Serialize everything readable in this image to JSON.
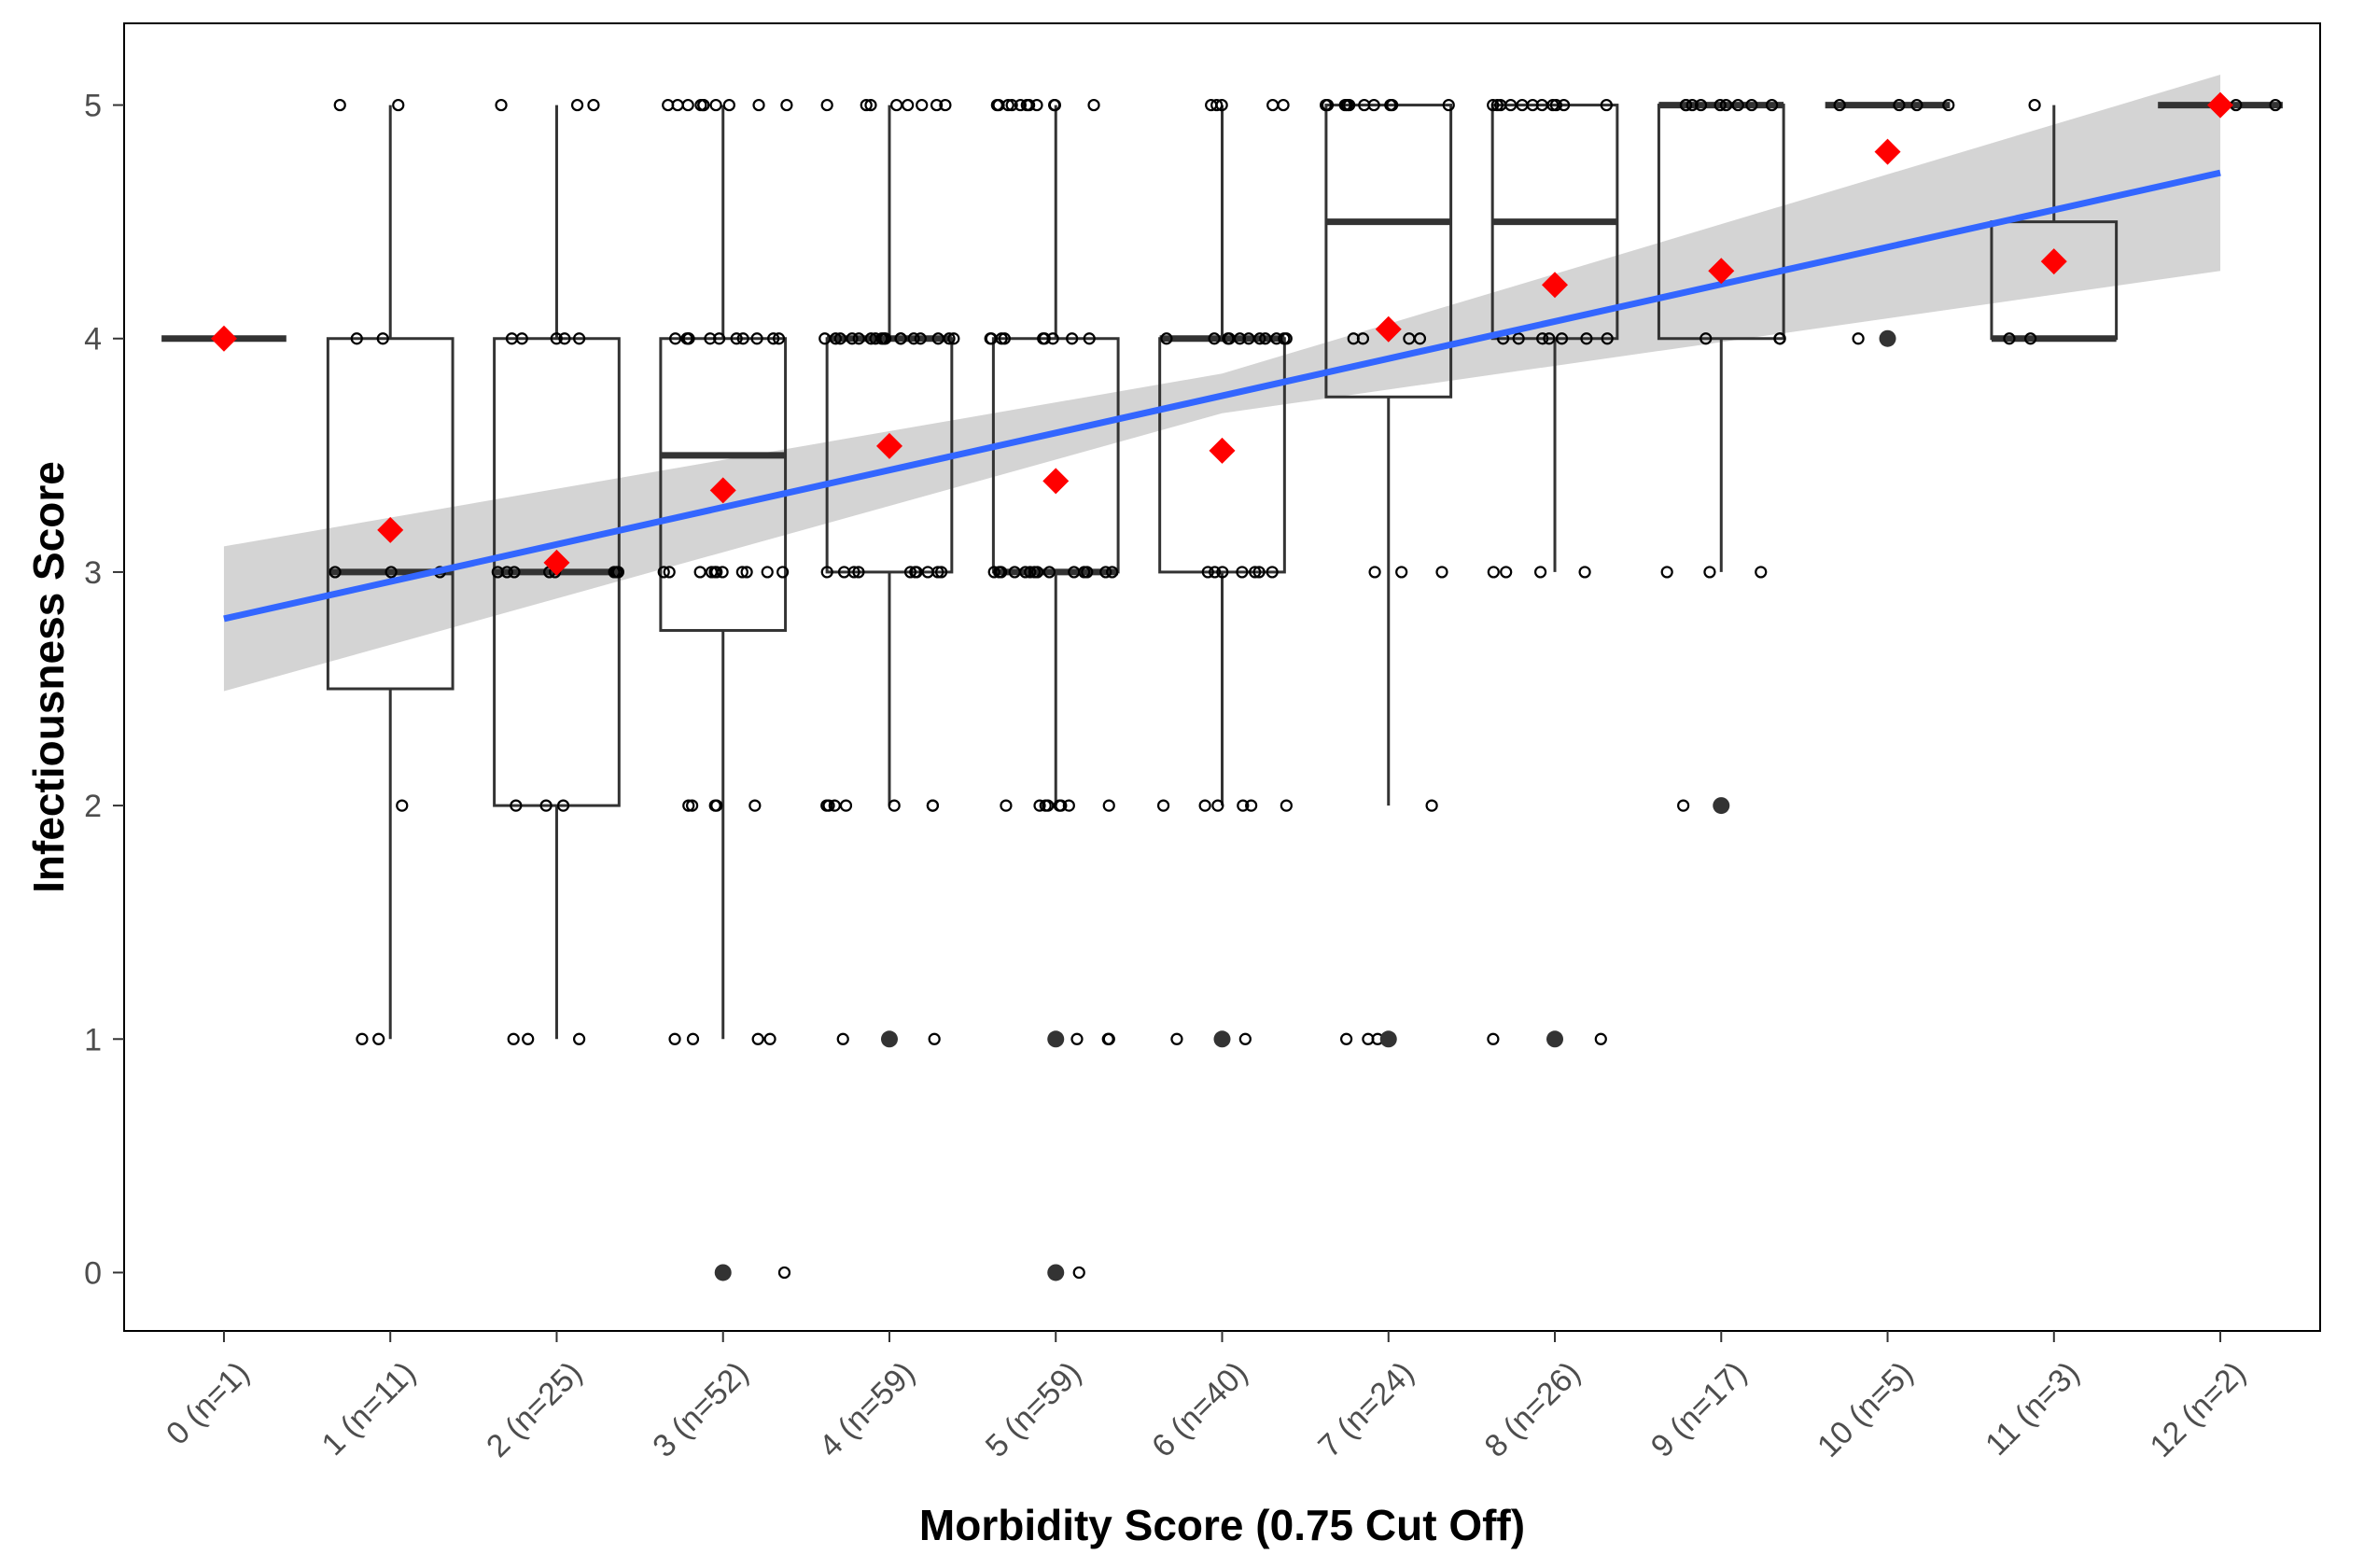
{
  "chart_data": {
    "type": "boxplot",
    "xlabel": "Morbidity Score (0.75 Cut Off)",
    "ylabel": "Infectiousness Score",
    "ylim": [
      -0.25,
      5.35
    ],
    "yticks": [
      0,
      1,
      2,
      3,
      4,
      5
    ],
    "grid": false,
    "legend": "none",
    "colors": {
      "mean": "#ff0000",
      "trend": "#3366ff",
      "ci_band": "#d4d4d4",
      "box_stroke": "#333333",
      "point": "#000000",
      "outlier": "#333333"
    },
    "categories": [
      "0 (n=1)",
      "1 (n=11)",
      "2 (n=25)",
      "3 (n=52)",
      "4 (n=59)",
      "5 (n=59)",
      "6 (n=40)",
      "7 (n=24)",
      "8 (n=26)",
      "9 (n=17)",
      "10 (n=5)",
      "11 (n=3)",
      "12 (n=2)"
    ],
    "boxes": [
      {
        "category": "0 (n=1)",
        "min": 4,
        "q1": 4,
        "median": 4,
        "q3": 4,
        "max": 4,
        "mean": 4.0,
        "outliers": []
      },
      {
        "category": "1 (n=11)",
        "min": 1,
        "q1": 2.5,
        "median": 3,
        "q3": 4,
        "max": 5,
        "mean": 3.18,
        "outliers": []
      },
      {
        "category": "2 (n=25)",
        "min": 1,
        "q1": 2,
        "median": 3,
        "q3": 4,
        "max": 5,
        "mean": 3.04,
        "outliers": []
      },
      {
        "category": "3 (n=52)",
        "min": 1,
        "q1": 2.75,
        "median": 3.5,
        "q3": 4,
        "max": 5,
        "mean": 3.35,
        "outliers": [
          0
        ]
      },
      {
        "category": "4 (n=59)",
        "min": 2,
        "q1": 3,
        "median": 4,
        "q3": 4,
        "max": 5,
        "mean": 3.54,
        "outliers": [
          1
        ]
      },
      {
        "category": "5 (n=59)",
        "min": 2,
        "q1": 3,
        "median": 3,
        "q3": 4,
        "max": 5,
        "mean": 3.39,
        "outliers": [
          1,
          0
        ]
      },
      {
        "category": "6 (n=40)",
        "min": 2,
        "q1": 3,
        "median": 4,
        "q3": 4,
        "max": 5,
        "mean": 3.52,
        "outliers": [
          1
        ]
      },
      {
        "category": "7 (n=24)",
        "min": 2,
        "q1": 3.75,
        "median": 4.5,
        "q3": 5,
        "max": 5,
        "mean": 4.04,
        "outliers": [
          1
        ]
      },
      {
        "category": "8 (n=26)",
        "min": 3,
        "q1": 4,
        "median": 4.5,
        "q3": 5,
        "max": 5,
        "mean": 4.23,
        "outliers": [
          1
        ]
      },
      {
        "category": "9 (n=17)",
        "min": 3,
        "q1": 4,
        "median": 5,
        "q3": 5,
        "max": 5,
        "mean": 4.29,
        "outliers": [
          2
        ]
      },
      {
        "category": "10 (n=5)",
        "min": 5,
        "q1": 5,
        "median": 5,
        "q3": 5,
        "max": 5,
        "mean": 4.8,
        "outliers": [
          4
        ]
      },
      {
        "category": "11 (n=3)",
        "min": 4,
        "q1": 4,
        "median": 4,
        "q3": 4.5,
        "max": 5,
        "mean": 4.33,
        "outliers": []
      },
      {
        "category": "12 (n=2)",
        "min": 5,
        "q1": 5,
        "median": 5,
        "q3": 5,
        "max": 5,
        "mean": 5.0,
        "outliers": []
      }
    ],
    "jitter_points": [
      {
        "category": "0 (n=1)",
        "values": [
          4
        ]
      },
      {
        "category": "1 (n=11)",
        "values": [
          5,
          5,
          4,
          4,
          3,
          3,
          3,
          2,
          1,
          1
        ]
      },
      {
        "category": "2 (n=25)",
        "values": [
          5,
          5,
          5,
          4,
          4,
          4,
          4,
          4,
          3,
          3,
          3,
          3,
          3,
          3,
          3,
          3,
          2,
          2,
          2,
          1,
          1,
          1
        ]
      },
      {
        "category": "3 (n=52)",
        "values": [
          5,
          5,
          5,
          5,
          5,
          5,
          5,
          5,
          5,
          5,
          4,
          4,
          4,
          4,
          4,
          4,
          4,
          4,
          4,
          4,
          4,
          3,
          3,
          3,
          3,
          3,
          3,
          3,
          3,
          3,
          3,
          3,
          3,
          2,
          2,
          2,
          2,
          2,
          1,
          1,
          1,
          1,
          0
        ]
      },
      {
        "category": "4 (n=59)",
        "values": [
          5,
          5,
          5,
          5,
          5,
          5,
          5,
          5,
          4,
          4,
          4,
          4,
          4,
          4,
          4,
          4,
          4,
          4,
          4,
          4,
          4,
          4,
          4,
          4,
          4,
          3,
          3,
          3,
          3,
          3,
          3,
          3,
          3,
          3,
          3,
          2,
          2,
          2,
          2,
          2,
          2,
          2,
          1,
          1
        ]
      },
      {
        "category": "5 (n=59)",
        "values": [
          5,
          5,
          5,
          5,
          5,
          5,
          5,
          5,
          5,
          5,
          5,
          4,
          4,
          4,
          4,
          4,
          4,
          4,
          4,
          4,
          3,
          3,
          3,
          3,
          3,
          3,
          3,
          3,
          3,
          3,
          3,
          3,
          3,
          3,
          3,
          2,
          2,
          2,
          2,
          2,
          2,
          2,
          2,
          1,
          1,
          1,
          1,
          0
        ]
      },
      {
        "category": "6 (n=40)",
        "values": [
          5,
          5,
          5,
          5,
          5,
          4,
          4,
          4,
          4,
          4,
          4,
          4,
          4,
          4,
          4,
          4,
          3,
          3,
          3,
          3,
          3,
          3,
          3,
          2,
          2,
          2,
          2,
          2,
          2,
          1,
          1
        ]
      },
      {
        "category": "7 (n=24)",
        "values": [
          5,
          5,
          5,
          5,
          5,
          5,
          5,
          5,
          5,
          5,
          4,
          4,
          4,
          4,
          3,
          3,
          3,
          2,
          1,
          1,
          1
        ]
      },
      {
        "category": "8 (n=26)",
        "values": [
          5,
          5,
          5,
          5,
          5,
          5,
          5,
          5,
          5,
          5,
          5,
          4,
          4,
          4,
          4,
          4,
          4,
          4,
          3,
          3,
          3,
          3,
          1,
          1
        ]
      },
      {
        "category": "9 (n=17)",
        "values": [
          5,
          5,
          5,
          5,
          5,
          5,
          5,
          5,
          5,
          4,
          4,
          4,
          3,
          3,
          3,
          2
        ]
      },
      {
        "category": "10 (n=5)",
        "values": [
          5,
          5,
          5,
          5,
          4
        ]
      },
      {
        "category": "11 (n=3)",
        "values": [
          5,
          4,
          4
        ]
      },
      {
        "category": "12 (n=2)",
        "values": [
          5,
          5
        ]
      }
    ],
    "trend_line": {
      "x_start": "0 (n=1)",
      "y_start": 2.8,
      "x_end": "12 (n=2)",
      "y_end": 4.71
    },
    "confidence_band": {
      "upper": [
        [
          0,
          3.11
        ],
        [
          6,
          3.85
        ],
        [
          12,
          5.13
        ]
      ],
      "lower": [
        [
          0,
          2.49
        ],
        [
          6,
          3.68
        ],
        [
          12,
          4.29
        ]
      ]
    }
  }
}
